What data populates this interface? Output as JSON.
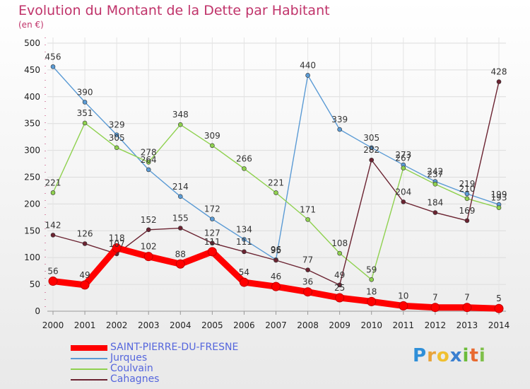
{
  "chart_data": {
    "type": "line",
    "title": "Evolution du Montant de la Dette par Habitant",
    "subtitle": "(en €)",
    "x": [
      "2000",
      "2001",
      "2002",
      "2003",
      "2004",
      "2005",
      "2006",
      "2007",
      "2008",
      "2009",
      "2010",
      "2011",
      "2012",
      "2013",
      "2014"
    ],
    "ylim": [
      0,
      500
    ],
    "yticks": [
      0,
      50,
      100,
      150,
      200,
      250,
      300,
      350,
      400,
      450,
      500
    ],
    "grid": true,
    "legend_position": "bottom-left",
    "series": [
      {
        "name": "SAINT-PIERRE-DU-FRESNE",
        "color": "#ff0000",
        "values": [
          56,
          49,
          118,
          102,
          88,
          111,
          54,
          46,
          36,
          25,
          18,
          10,
          7,
          7,
          5
        ]
      },
      {
        "name": "Jurques",
        "color": "#5b9bd5",
        "values": [
          456,
          390,
          329,
          264,
          214,
          172,
          134,
          96,
          440,
          339,
          305,
          273,
          242,
          219,
          199
        ]
      },
      {
        "name": "Coulvain",
        "color": "#8fd14f",
        "values": [
          221,
          351,
          305,
          278,
          348,
          309,
          266,
          221,
          171,
          108,
          59,
          267,
          237,
          210,
          193
        ]
      },
      {
        "name": "Cahagnes",
        "color": "#6b2331",
        "values": [
          142,
          126,
          107,
          152,
          155,
          127,
          111,
          95,
          77,
          49,
          282,
          204,
          184,
          169,
          428
        ]
      }
    ]
  },
  "logo": {
    "text": "Proxiti",
    "chars": [
      "P",
      "r",
      "o",
      "x",
      "i",
      "t",
      "i"
    ]
  }
}
